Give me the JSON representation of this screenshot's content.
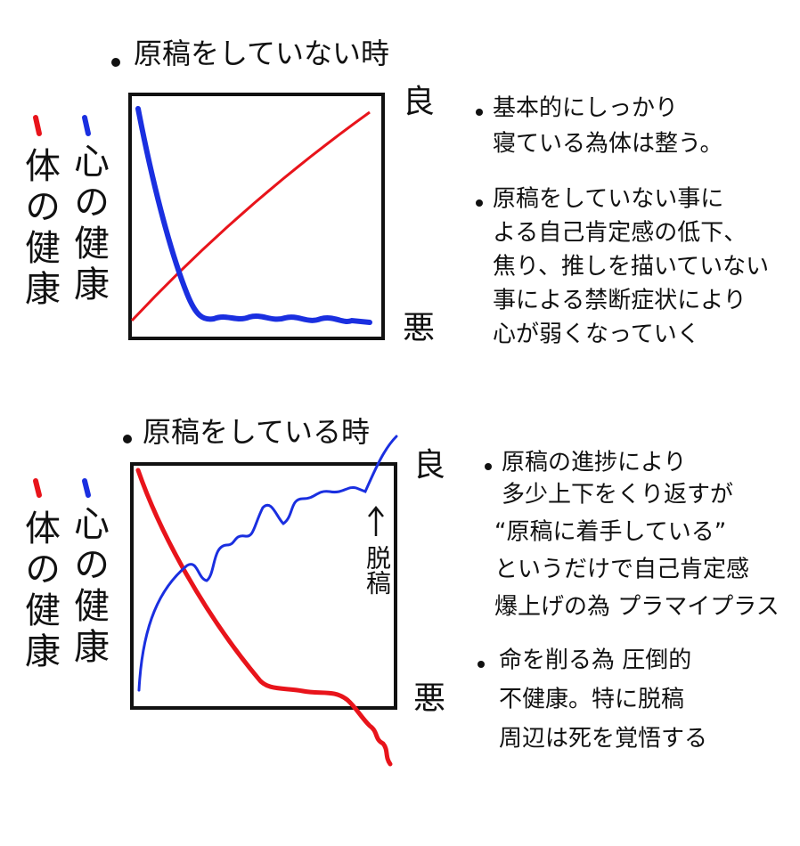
{
  "panels": [
    {
      "title": "原稿をしていない時",
      "legend": [
        {
          "label": "体の健康",
          "color": "#e8141b"
        },
        {
          "label": "心の健康",
          "color": "#1a2fe0"
        }
      ],
      "axis": {
        "top": "良",
        "bottom": "悪"
      },
      "notes": [
        [
          "基本的にしっかり",
          "寝ている為体は整う。"
        ],
        [
          "原稿をしていない事に",
          "よる自己肯定感の低下、",
          "焦り、推しを描いていない",
          "事による禁断症状により",
          "心が弱くなっていく"
        ]
      ]
    },
    {
      "title": "原稿をしている時",
      "legend": [
        {
          "label": "体の健康",
          "color": "#e8141b"
        },
        {
          "label": "心の健康",
          "color": "#1a2fe0"
        }
      ],
      "axis": {
        "top": "良",
        "bottom": "悪"
      },
      "annotation": "脱稿",
      "notes": [
        [
          "原稿の進捗により",
          "多少上下をくり返すが",
          "“原稿に着手している”",
          "というだけで自己肯定感",
          "爆上げの為 プラマイプラス"
        ],
        [
          "命を削る為 圧倒的",
          "不健康。特に脱稿",
          "周辺は死を覚悟する"
        ]
      ]
    }
  ]
}
